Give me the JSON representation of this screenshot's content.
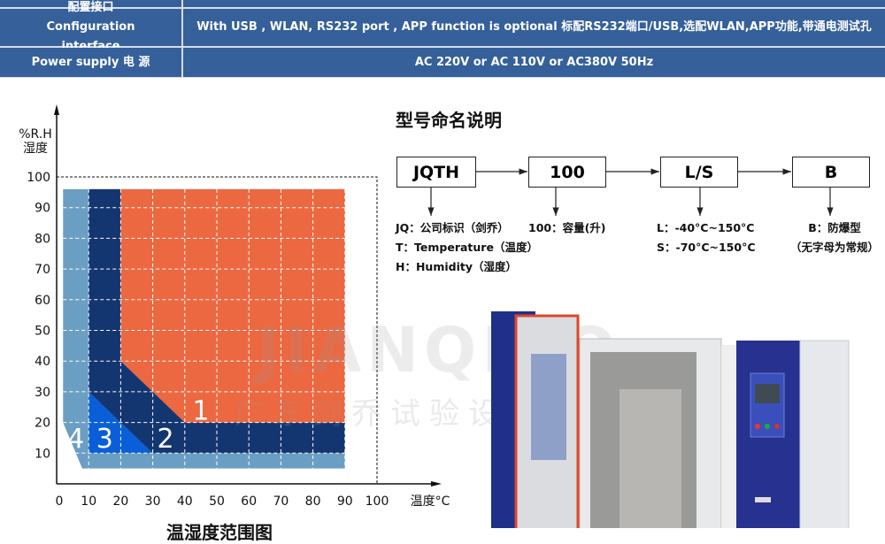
{
  "spec_table": {
    "rows": [
      {
        "label": "配置接口Configuration interface",
        "value": "With USB , WLAN, RS232  port , APP function is optional 标配RS232端口/USB,选配WLAN,APP功能,带通电测试孔"
      },
      {
        "label": "Power supply 电 源",
        "value": "AC 220V or AC 110V or AC380V 50Hz"
      }
    ],
    "header_color": "#35609a"
  },
  "chart_data": {
    "type": "area",
    "title": "温湿度范围图",
    "xlabel": "温度°C",
    "ylabel": "%R.H 湿度",
    "ylabel_line1": "%R.H",
    "ylabel_line2": "湿度",
    "xlim": [
      0,
      100
    ],
    "ylim": [
      0,
      100
    ],
    "x_ticks": [
      0,
      10,
      20,
      30,
      40,
      50,
      60,
      70,
      80,
      90,
      100
    ],
    "y_ticks": [
      10,
      20,
      30,
      40,
      50,
      60,
      70,
      80,
      90,
      100
    ],
    "grid": true,
    "regions": [
      {
        "label": "4",
        "color": "#6a9fc3",
        "points": [
          [
            2,
            96
          ],
          [
            90,
            96
          ],
          [
            90,
            5
          ],
          [
            8,
            5
          ],
          [
            2,
            20
          ]
        ],
        "label_at": [
          6,
          15
        ]
      },
      {
        "label": "2",
        "color": "#143670",
        "points": [
          [
            10,
            96
          ],
          [
            20,
            96
          ],
          [
            20,
            40
          ],
          [
            40,
            20
          ],
          [
            90,
            20
          ],
          [
            90,
            10
          ],
          [
            30,
            10
          ],
          [
            10,
            30
          ]
        ],
        "label_at": [
          34,
          15
        ]
      },
      {
        "label": "3",
        "color": "#0a5fd8",
        "points": [
          [
            10,
            30
          ],
          [
            30,
            10
          ],
          [
            10,
            10
          ]
        ],
        "label_at": [
          15,
          15
        ]
      },
      {
        "label": "1",
        "color": "#ec6841",
        "points": [
          [
            20,
            96
          ],
          [
            90,
            96
          ],
          [
            90,
            20
          ],
          [
            40,
            20
          ],
          [
            20,
            40
          ]
        ],
        "label_at": [
          45,
          24
        ]
      }
    ]
  },
  "naming": {
    "title": "型号命名说明",
    "boxes": [
      "JQTH",
      "100",
      "L/S",
      "B"
    ],
    "desc_jqth": [
      "JQ：公司标识（剑乔）",
      "T：Temperature（温度）",
      "H：Humidity（湿度）"
    ],
    "desc_100": [
      "100：容量(升)"
    ],
    "desc_ls": [
      "L：-40°C~150°C",
      "S：-70°C~150°C"
    ],
    "desc_b": [
      "B：防爆型",
      "（无字母为常规）"
    ]
  },
  "watermark": {
    "brand": "JIANQIAO",
    "company": "广东剑乔试验设备有限公司"
  }
}
